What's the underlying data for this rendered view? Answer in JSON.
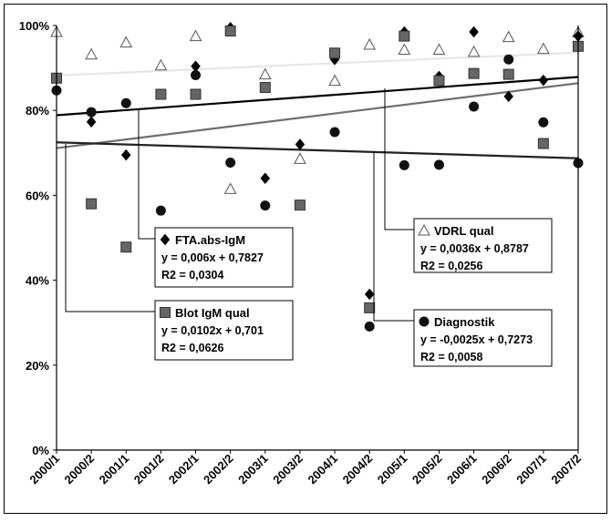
{
  "chart_data": {
    "type": "scatter",
    "title": "",
    "xlabel": "",
    "ylabel": "",
    "categories": [
      "2000/1",
      "2000/2",
      "2001/1",
      "2001/2",
      "2002/1",
      "2002/2",
      "2003/1",
      "2003/2",
      "2004/1",
      "2004/2",
      "2005/1",
      "2005/2",
      "2006/1",
      "2006/2",
      "2007/1",
      "2007/2"
    ],
    "y_ticks": [
      "0%",
      "20%",
      "40%",
      "60%",
      "80%",
      "100%"
    ],
    "ylim": [
      0,
      100
    ],
    "grid": false,
    "series": [
      {
        "name": "VDRL qual",
        "marker": "triangle",
        "color": "#ffffff",
        "values": [
          98.5,
          93.2,
          96.0,
          90.6,
          97.5,
          61.5,
          88.5,
          68.6,
          87.0,
          95.5,
          94.3,
          94.3,
          93.8,
          97.3,
          94.5,
          98.4
        ],
        "trend_color": "#e6e6e6",
        "equation": "y = 0,0036x + 0,8787",
        "r2": "R2 = 0,0256"
      },
      {
        "name": "FTA.abs-IgM",
        "marker": "diamond",
        "color": "#000000",
        "values": [
          87.4,
          77.3,
          69.5,
          null,
          90.4,
          99.5,
          64.0,
          72.0,
          92.0,
          36.7,
          98.5,
          88.0,
          98.5,
          83.3,
          87.1,
          97.5
        ],
        "trend_color": "#000000",
        "equation": "y = 0,006x + 0,7827",
        "r2": "R2 = 0,0304"
      },
      {
        "name": "Blot IgM qual",
        "marker": "square",
        "color": "#666666",
        "values": [
          87.6,
          58.0,
          47.8,
          83.8,
          83.8,
          98.7,
          85.4,
          57.7,
          93.5,
          33.5,
          97.5,
          87.0,
          88.7,
          88.5,
          72.2,
          95.1
        ],
        "trend_color": "#6e6e6e",
        "equation": "y = 0,0102x + 0,701",
        "r2": "R2 = 0,0626"
      },
      {
        "name": "Diagnostik",
        "marker": "circle",
        "color": "#111111",
        "values": [
          84.7,
          79.6,
          81.7,
          56.4,
          88.3,
          67.7,
          57.6,
          null,
          74.9,
          29.1,
          67.1,
          67.2,
          80.9,
          92.0,
          77.2,
          67.6
        ],
        "trend_color": "#222222",
        "equation": "y = -0,0025x + 0,7273",
        "r2": "R2 = 0,0058"
      }
    ]
  }
}
